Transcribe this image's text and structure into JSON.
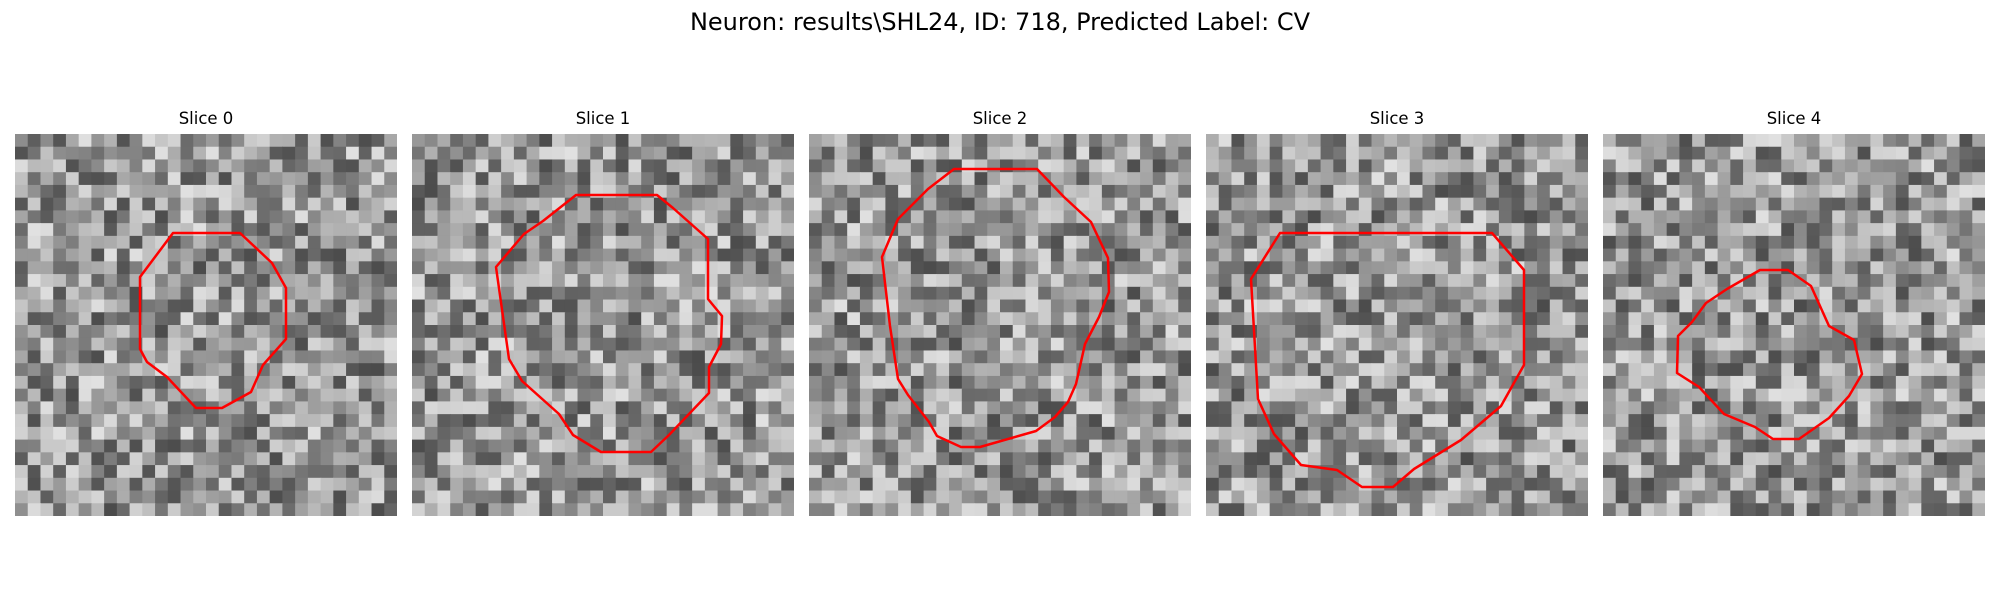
{
  "figure": {
    "title": "Neuron: results\\SHL24, ID: 718, Predicted Label: CV"
  },
  "colors": {
    "outline": "#ff0000",
    "colormap": "grayscale"
  },
  "panels": [
    {
      "title": "Slice 0"
    },
    {
      "title": "Slice 1"
    },
    {
      "title": "Slice 2"
    },
    {
      "title": "Slice 3"
    },
    {
      "title": "Slice 4"
    }
  ]
}
